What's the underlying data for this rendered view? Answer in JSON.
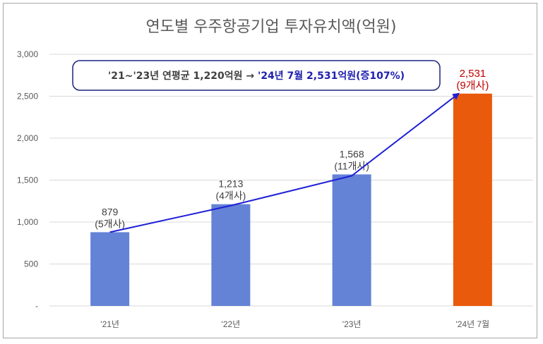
{
  "chart_data": {
    "type": "bar",
    "title": "연도별 우주항공기업 투자유치액(억원)",
    "categories": [
      "'21년",
      "'22년",
      "'23년",
      "'24년 7월"
    ],
    "values": [
      879,
      1213,
      1568,
      2531
    ],
    "value_labels": [
      "879",
      "1,213",
      "1,568",
      "2,531"
    ],
    "count_labels": [
      "(5개사)",
      "(4개사)",
      "(11개사)",
      "(9개사)"
    ],
    "yticks": [
      "-",
      "500",
      "1,000",
      "1,500",
      "2,000",
      "2,500",
      "3,000"
    ],
    "ylim": [
      0,
      3000
    ],
    "grid": true,
    "colors": {
      "bar": "#6483d6",
      "highlight": "#ea5a0c",
      "arrow": "#1f1fd6",
      "highlight_label": "#c00000"
    },
    "callout": {
      "part1": "'21~'23년  연평균  1,220억원  → ",
      "part2": "'24년  7월  2,531억원(증107%)"
    }
  }
}
